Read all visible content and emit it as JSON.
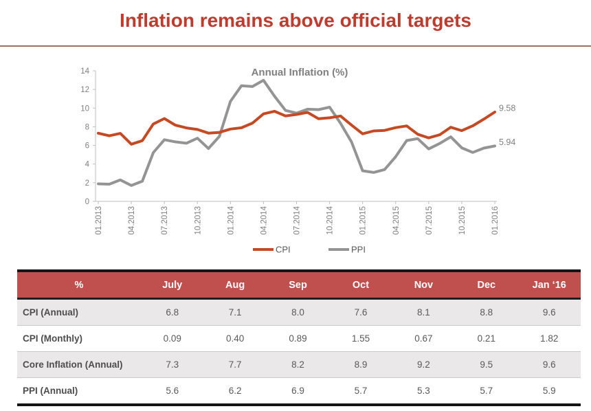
{
  "slide": {
    "title": "Inflation remains above official targets"
  },
  "colors": {
    "title_red": "#be3b2e",
    "divider": "#9e6f66",
    "header_red": "#c0504d",
    "cpi_line": "#c54a24",
    "ppi_line": "#949494",
    "axis_text": "#808080",
    "axis_line": "#bfbfbf",
    "legend_text": "#595959",
    "row_alt": "#eae8e8",
    "table_border_dark": "#141414"
  },
  "chart_data": {
    "type": "line",
    "title": "Annual Inflation (%)",
    "grid": false,
    "legend_position": "bottom",
    "ylim": [
      0,
      14
    ],
    "y_ticks": [
      0,
      2,
      4,
      6,
      8,
      10,
      12,
      14
    ],
    "x_tick_labels": [
      "01.2013",
      "04.2013",
      "07.2013",
      "10.2013",
      "01.2014",
      "04.2014",
      "07.2014",
      "10.2014",
      "01.2015",
      "04.2015",
      "07.2015",
      "10.2015",
      "01.2016"
    ],
    "x_tick_every": 3,
    "series": [
      {
        "name": "CPI",
        "end_label": "9.58",
        "values": [
          7.31,
          7.03,
          7.29,
          6.13,
          6.51,
          8.3,
          8.88,
          8.17,
          7.88,
          7.71,
          7.32,
          7.4,
          7.75,
          7.89,
          8.39,
          9.38,
          9.66,
          9.16,
          9.32,
          9.54,
          8.86,
          8.96,
          9.15,
          8.17,
          7.24,
          7.55,
          7.61,
          7.91,
          8.09,
          7.2,
          6.81,
          7.14,
          7.95,
          7.58,
          8.1,
          8.81,
          9.58
        ]
      },
      {
        "name": "PPI",
        "end_label": "5.94",
        "values": [
          1.88,
          1.84,
          2.3,
          1.7,
          2.17,
          5.23,
          6.61,
          6.38,
          6.23,
          6.77,
          5.67,
          6.97,
          10.72,
          12.4,
          12.31,
          12.98,
          11.28,
          9.75,
          9.46,
          9.88,
          9.84,
          10.1,
          8.36,
          6.36,
          3.28,
          3.1,
          3.41,
          4.8,
          6.52,
          6.73,
          5.62,
          6.21,
          6.92,
          5.74,
          5.25,
          5.71,
          5.94
        ]
      }
    ]
  },
  "table": {
    "headers": [
      "%",
      "July",
      "Aug",
      "Sep",
      "Oct",
      "Nov",
      "Dec",
      "Jan ‘16"
    ],
    "rows": [
      {
        "label": "CPI (Annual)",
        "values": [
          "6.8",
          "7.1",
          "8.0",
          "7.6",
          "8.1",
          "8.8",
          "9.6"
        ]
      },
      {
        "label": "CPI (Monthly)",
        "values": [
          "0.09",
          "0.40",
          "0.89",
          "1.55",
          "0.67",
          "0.21",
          "1.82"
        ]
      },
      {
        "label": "Core Inflation (Annual)",
        "values": [
          "7.3",
          "7.7",
          "8.2",
          "8.9",
          "9.2",
          "9.5",
          "9.6"
        ]
      },
      {
        "label": "PPI (Annual)",
        "values": [
          "5.6",
          "6.2",
          "6.9",
          "5.7",
          "5.3",
          "5.7",
          "5.9"
        ]
      }
    ]
  }
}
